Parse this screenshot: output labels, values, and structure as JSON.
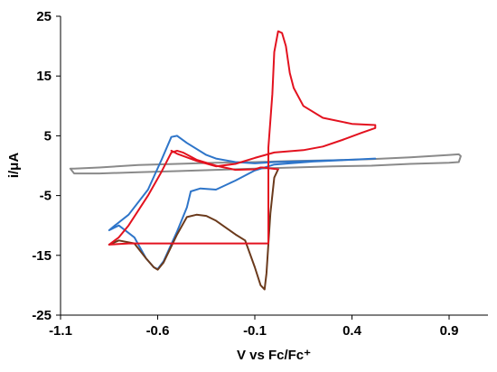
{
  "chart_data": {
    "type": "line",
    "title": "",
    "xlabel": "V vs Fc/Fc⁺",
    "ylabel": "i/μA",
    "xlim": [
      -1.1,
      1.1
    ],
    "ylim": [
      -25,
      25
    ],
    "x_ticks": [
      -1.1,
      -0.6,
      -0.1,
      0.4,
      0.9
    ],
    "x_tick_labels": [
      "-1.1",
      "-0.6",
      "-0.1",
      "0.4",
      "0.9"
    ],
    "y_ticks": [
      -25,
      -15,
      -5,
      5,
      15,
      25
    ],
    "y_tick_labels": [
      "-25",
      "-15",
      "-5",
      "5",
      "15",
      "25"
    ],
    "grid": false,
    "legend": "none",
    "series": [
      {
        "color": "#8a8a8a",
        "x": [
          -1.05,
          -1.03,
          -0.9,
          -0.7,
          -0.5,
          -0.3,
          -0.1,
          0.1,
          0.3,
          0.5,
          0.7,
          0.9,
          0.95,
          0.96,
          0.95,
          0.9,
          0.7,
          0.5,
          0.3,
          0.1,
          -0.1,
          -0.3,
          -0.5,
          -0.7,
          -0.9,
          -1.03,
          -1.05
        ],
        "y": [
          -0.5,
          -1.3,
          -1.3,
          -1.1,
          -0.9,
          -0.7,
          -0.5,
          -0.3,
          -0.1,
          0.0,
          0.3,
          0.5,
          0.6,
          1.6,
          1.9,
          1.8,
          1.4,
          1.1,
          0.9,
          0.8,
          0.6,
          0.5,
          0.3,
          0.1,
          -0.3,
          -0.5,
          -0.5
        ]
      },
      {
        "color": "#2e75c9",
        "x": [
          0.52,
          0.4,
          0.2,
          0.0,
          -0.1,
          -0.2,
          -0.3,
          -0.35,
          -0.45,
          -0.5,
          -0.53,
          -0.58,
          -0.65,
          -0.75,
          -0.82,
          -0.85,
          -0.8,
          -0.72,
          -0.66,
          -0.62,
          -0.6,
          -0.57,
          -0.5,
          -0.45,
          -0.43,
          -0.38,
          -0.3,
          -0.2,
          -0.1,
          0.0,
          0.2,
          0.4,
          0.52
        ],
        "y": [
          1.2,
          1.0,
          0.8,
          0.6,
          0.4,
          0.6,
          1.2,
          1.8,
          3.8,
          5.0,
          4.8,
          1.0,
          -4.0,
          -8.2,
          -10.0,
          -10.8,
          -10.0,
          -12.0,
          -15.5,
          -17.0,
          -17.3,
          -16.0,
          -11.0,
          -7.0,
          -4.3,
          -3.8,
          -4.0,
          -2.5,
          -0.8,
          0.2,
          0.7,
          1.0,
          1.2
        ]
      },
      {
        "color": "#6b3a1c",
        "x": [
          -0.85,
          -0.8,
          -0.72,
          -0.66,
          -0.62,
          -0.6,
          -0.57,
          -0.5,
          -0.45,
          -0.4,
          -0.35,
          -0.3,
          -0.2,
          -0.15,
          -0.1,
          -0.07,
          -0.05,
          -0.04,
          -0.02,
          0.0,
          0.02
        ],
        "y": [
          -13.2,
          -12.5,
          -13.0,
          -15.5,
          -17.0,
          -17.4,
          -16.2,
          -11.5,
          -8.6,
          -8.2,
          -8.4,
          -9.2,
          -11.5,
          -12.5,
          -17.0,
          -20.0,
          -20.7,
          -18.0,
          -8.0,
          -2.0,
          -0.6
        ]
      },
      {
        "color": "#e3121f",
        "x": [
          0.02,
          -0.06,
          -0.07,
          -0.1,
          -0.2,
          -0.3,
          -0.4,
          -0.47,
          -0.5,
          -0.53,
          -0.58,
          -0.65,
          -0.75,
          -0.8,
          -0.85,
          -0.75,
          -0.55,
          -0.4,
          -0.3,
          -0.2,
          -0.1,
          -0.05,
          -0.03,
          -0.03,
          -0.01,
          0.0,
          0.02,
          0.04,
          0.06,
          0.08,
          0.1,
          0.15,
          0.25,
          0.4,
          0.52,
          0.52,
          0.45,
          0.35,
          0.25,
          0.15,
          0.0,
          -0.1,
          -0.2,
          -0.3,
          -0.4,
          -0.5,
          -0.53
        ],
        "y": [
          -0.6,
          -0.3,
          -0.3,
          -0.6,
          -0.7,
          0.0,
          1.0,
          2.2,
          2.5,
          2.2,
          -1.0,
          -5.0,
          -10.0,
          -12.0,
          -13.2,
          -13.0,
          -13.0,
          -13.0,
          -13.0,
          -13.0,
          -13.0,
          -13.0,
          -13.0,
          3.0,
          12.0,
          19.0,
          22.5,
          22.2,
          20.0,
          15.5,
          13.0,
          10.0,
          8.0,
          7.0,
          6.8,
          6.3,
          5.5,
          4.3,
          3.2,
          2.6,
          2.2,
          1.3,
          0.3,
          -0.1,
          0.8,
          2.0,
          2.5
        ]
      }
    ]
  }
}
